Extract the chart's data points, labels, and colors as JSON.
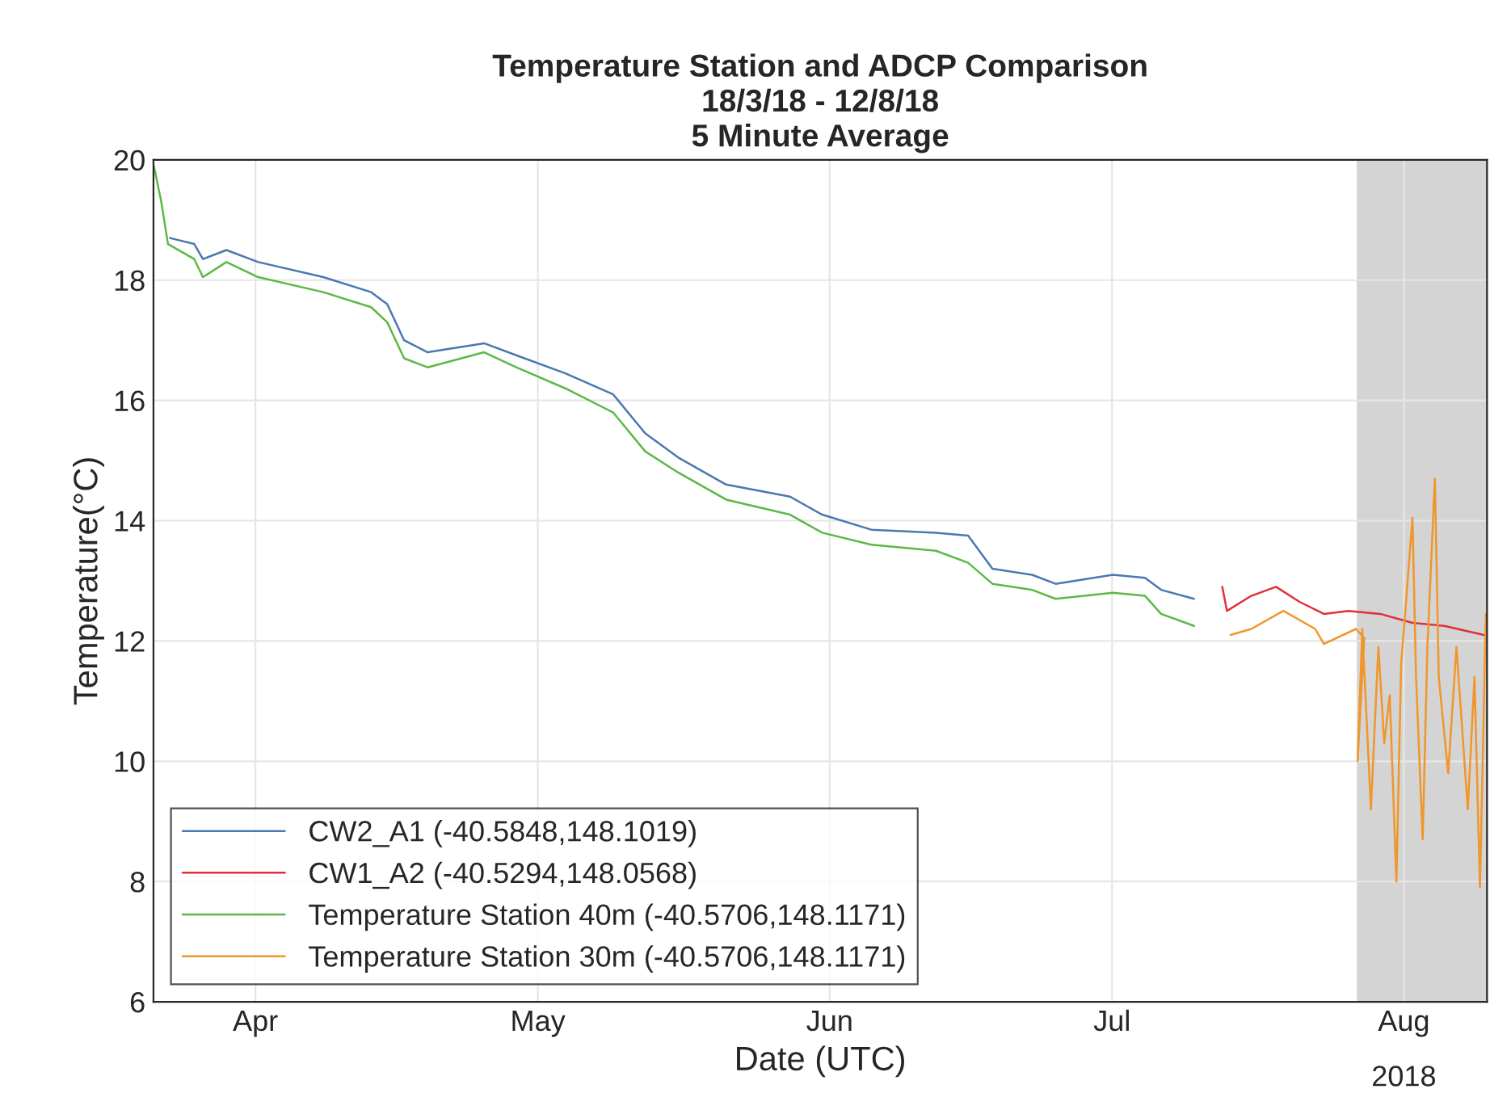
{
  "chart_data": {
    "type": "line",
    "title": "Temperature Station and ADCP Comparison\n18/3/18 - 12/8/18\n5 Minute Average",
    "xlabel": "Date (UTC)",
    "ylabel": "Temperature(°C)",
    "xlim": [
      "2018-03-21T04:00",
      "2018-08-09T20:00"
    ],
    "xticks": [
      {
        "value": "2018-04-01",
        "label": "Apr"
      },
      {
        "value": "2018-05-01",
        "label": "May"
      },
      {
        "value": "2018-06-01",
        "label": "Jun"
      },
      {
        "value": "2018-07-01",
        "label": "Jul"
      },
      {
        "value": "2018-08-01",
        "label": "Aug"
      }
    ],
    "ylim": [
      6,
      20
    ],
    "yticks": [
      6,
      8,
      10,
      12,
      14,
      16,
      18,
      20
    ],
    "grid": true,
    "legend": "bottom left",
    "line_style": "solid",
    "annotations": [
      "2018"
    ],
    "bands": [
      {
        "axis": "x",
        "from": "2018-07-27",
        "to": "2018-08-09T20:00",
        "color": "#d4d4d4"
      }
    ],
    "series": [
      {
        "name": "CW2_A1 (-40.5848,148.1019)",
        "color": "#4a78b0",
        "x": [
          "2018-03-22T22:00",
          "2018-03-25T12:00",
          "2018-03-26T10:00",
          "2018-03-28T22:00",
          "2018-04-01T07:00",
          "2018-04-08T05:00",
          "2018-04-13T07:00",
          "2018-04-15",
          "2018-04-16T19:00",
          "2018-04-19T07:00",
          "2018-04-25T07:00",
          "2018-04-28T17:00",
          "2018-05-03T22:00",
          "2018-05-09",
          "2018-05-12T10:00",
          "2018-05-15T22:00",
          "2018-05-21",
          "2018-05-27T19:00",
          "2018-05-31T05:00",
          "2018-06-05T10:00",
          "2018-06-12T07:00",
          "2018-06-15T17:00",
          "2018-06-18T07:00",
          "2018-06-22T12:00",
          "2018-06-25",
          "2018-07-01T02:00",
          "2018-07-04T12:00",
          "2018-07-06T05:00",
          "2018-07-09T17:00"
        ],
        "values": [
          18.7,
          18.6,
          18.35,
          18.5,
          18.3,
          18.05,
          17.8,
          17.6,
          17.0,
          16.8,
          16.95,
          16.75,
          16.45,
          16.1,
          15.45,
          15.05,
          14.6,
          14.4,
          14.1,
          13.85,
          13.8,
          13.75,
          13.2,
          13.1,
          12.95,
          13.1,
          13.05,
          12.85,
          12.7
        ]
      },
      {
        "name": "CW1_A2 (-40.5294,148.0568)",
        "color": "#e0303a",
        "x": [
          "2018-07-12T17:00",
          "2018-07-13T05:00",
          "2018-07-15T19:00",
          "2018-07-18T10:00",
          "2018-07-20T22:00",
          "2018-07-23T12:00",
          "2018-07-26T02:00",
          "2018-07-29T12:00",
          "2018-08-01T22:00",
          "2018-08-05T07:00",
          "2018-08-09T12:00"
        ],
        "values": [
          12.9,
          12.5,
          12.75,
          12.9,
          12.65,
          12.45,
          12.5,
          12.45,
          12.3,
          12.25,
          12.1
        ]
      },
      {
        "name": "Temperature Station 40m (-40.5706,148.1171)",
        "color": "#5cb848",
        "x": [
          "2018-03-21T05:00",
          "2018-03-22",
          "2018-03-22T17:00",
          "2018-03-25T12:00",
          "2018-03-26T10:00",
          "2018-03-28T22:00",
          "2018-04-01T07:00",
          "2018-04-08T05:00",
          "2018-04-13T07:00",
          "2018-04-15",
          "2018-04-16T19:00",
          "2018-04-19T07:00",
          "2018-04-25T07:00",
          "2018-04-28T17:00",
          "2018-05-03T22:00",
          "2018-05-09",
          "2018-05-12T10:00",
          "2018-05-15T22:00",
          "2018-05-21",
          "2018-05-27T19:00",
          "2018-05-31T05:00",
          "2018-06-05T10:00",
          "2018-06-12T07:00",
          "2018-06-15T17:00",
          "2018-06-18T07:00",
          "2018-06-22T12:00",
          "2018-06-25",
          "2018-07-01T02:00",
          "2018-07-04T12:00",
          "2018-07-06T05:00",
          "2018-07-09T17:00"
        ],
        "values": [
          19.9,
          19.3,
          18.6,
          18.35,
          18.05,
          18.3,
          18.05,
          17.8,
          17.55,
          17.3,
          16.7,
          16.55,
          16.8,
          16.55,
          16.2,
          15.8,
          15.15,
          14.8,
          14.35,
          14.1,
          13.8,
          13.6,
          13.5,
          13.3,
          12.95,
          12.85,
          12.7,
          12.8,
          12.75,
          12.45,
          12.25
        ]
      },
      {
        "name": "Temperature Station 30m (-40.5706,148.1171)",
        "color": "#f0962a",
        "x": [
          "2018-07-13T14:00",
          "2018-07-15T19:00",
          "2018-07-19T05:00",
          "2018-07-22T14:00",
          "2018-07-23T12:00",
          "2018-07-26T22:00",
          "2018-07-27T19:00",
          "2018-07-27T02:00",
          "2018-07-27T14:00",
          "2018-07-28T12:00",
          "2018-07-29T07:00",
          "2018-07-29T22:00",
          "2018-07-30T12:00",
          "2018-07-31T05:00",
          "2018-07-31T17:00",
          "2018-08-01T22:00",
          "2018-08-02T07:00",
          "2018-08-03",
          "2018-08-03T12:00",
          "2018-08-04T07:00",
          "2018-08-04T17:00",
          "2018-08-05T17:00",
          "2018-08-06T14:00",
          "2018-08-07T19:00",
          "2018-08-08T12:00",
          "2018-08-09T02:00",
          "2018-08-09T17:00"
        ],
        "values": [
          12.1,
          12.2,
          12.5,
          12.2,
          11.95,
          12.2,
          12.05,
          10.0,
          12.2,
          9.2,
          11.9,
          10.3,
          11.1,
          8.0,
          11.6,
          14.05,
          11.4,
          8.7,
          11.9,
          14.7,
          11.4,
          9.8,
          11.9,
          9.2,
          11.4,
          7.9,
          12.45
        ]
      }
    ]
  }
}
